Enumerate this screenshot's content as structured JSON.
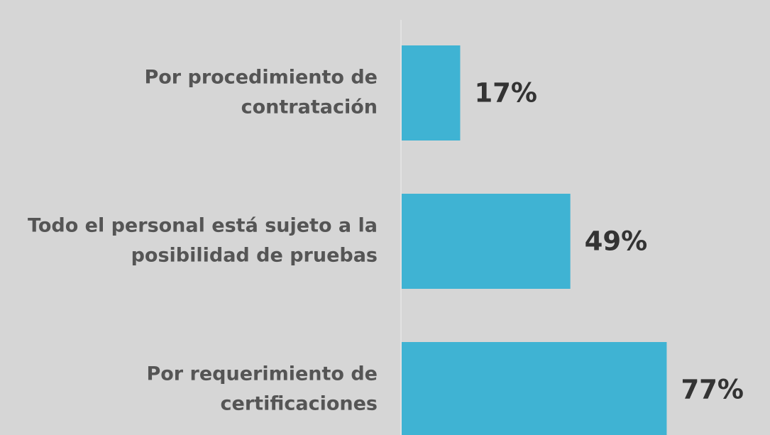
{
  "chart_data": {
    "type": "bar",
    "orientation": "horizontal",
    "categories": [
      [
        "Por procedimiento de",
        "contratación"
      ],
      [
        "Todo el personal está sujeto a la",
        "posibilidad de pruebas"
      ],
      [
        "Por requerimiento de",
        "certificaciones"
      ]
    ],
    "values": [
      17,
      49,
      77
    ],
    "value_labels": [
      "17%",
      "49%",
      "77%"
    ],
    "color": "#3fb3d3"
  }
}
